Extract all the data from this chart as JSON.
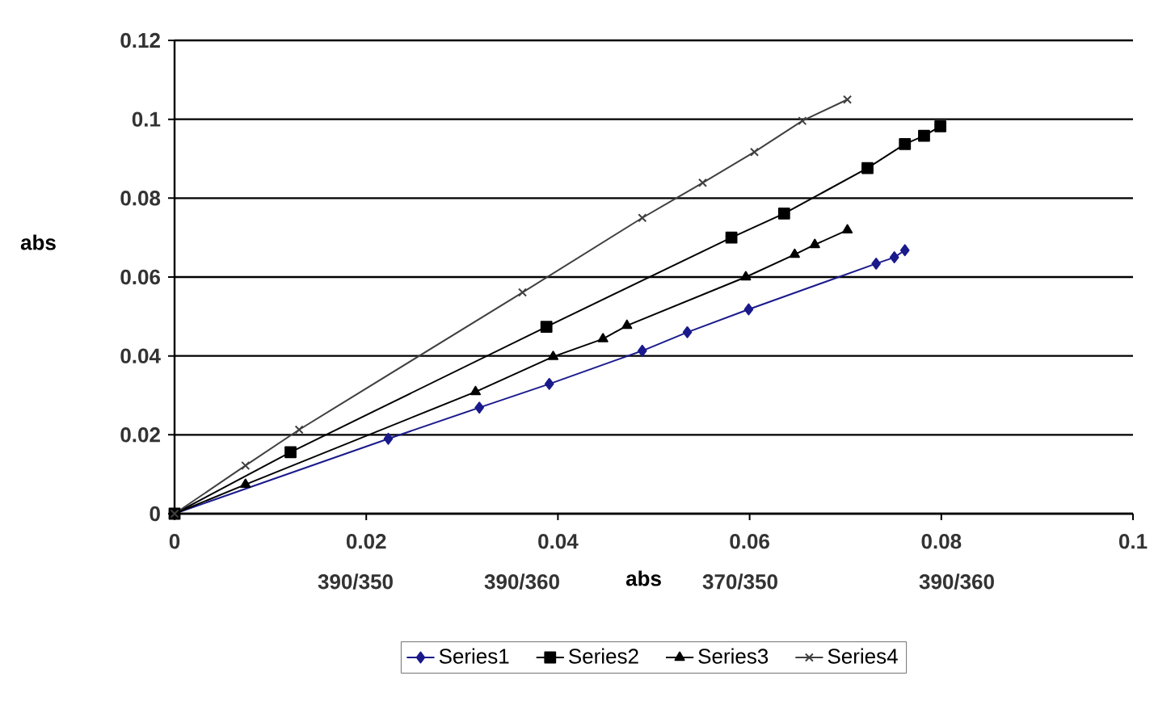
{
  "chart_data": {
    "type": "line",
    "ylabel": "abs",
    "xlabel": "abs",
    "annotations": [
      "390/350",
      "390/360",
      "370/350",
      "390/360"
    ],
    "xlim": [
      0,
      0.1
    ],
    "xticks": [
      0,
      0.02,
      0.04,
      0.06,
      0.08,
      0.1
    ],
    "ylim": [
      0,
      0.12
    ],
    "yticks": [
      0,
      0.02,
      0.04,
      0.06,
      0.08,
      0.1,
      0.12
    ],
    "grid": "y",
    "legend": "bottom",
    "line_style": "solid",
    "series": [
      {
        "name": "Series1",
        "color": "#1a1a8c",
        "marker": "diamond",
        "x": [
          0,
          0.0223,
          0.0318,
          0.0391,
          0.0488,
          0.0535,
          0.0599,
          0.0732,
          0.0751,
          0.0762
        ],
        "values": [
          0,
          0.019,
          0.0269,
          0.0329,
          0.0413,
          0.046,
          0.0518,
          0.0634,
          0.065,
          0.0668
        ]
      },
      {
        "name": "Series2",
        "color": "#000000",
        "marker": "square",
        "x": [
          0,
          0.0121,
          0.0388,
          0.0581,
          0.0636,
          0.0723,
          0.0762,
          0.0782,
          0.0799
        ],
        "values": [
          0,
          0.0156,
          0.0474,
          0.07,
          0.0761,
          0.0876,
          0.0937,
          0.0958,
          0.0982
        ]
      },
      {
        "name": "Series3",
        "color": "#000000",
        "marker": "triangle",
        "x": [
          0,
          0.0074,
          0.0314,
          0.0395,
          0.0447,
          0.0472,
          0.0596,
          0.0647,
          0.0668,
          0.0702
        ],
        "values": [
          0,
          0.0074,
          0.0309,
          0.0398,
          0.0443,
          0.0477,
          0.06,
          0.0657,
          0.0682,
          0.0719
        ]
      },
      {
        "name": "Series4",
        "color": "#404040",
        "marker": "cross",
        "x": [
          0,
          0.0074,
          0.013,
          0.0363,
          0.0488,
          0.0551,
          0.0605,
          0.0655,
          0.0702
        ],
        "values": [
          0,
          0.0122,
          0.0213,
          0.0561,
          0.075,
          0.0839,
          0.0917,
          0.0996,
          0.105
        ]
      }
    ]
  }
}
